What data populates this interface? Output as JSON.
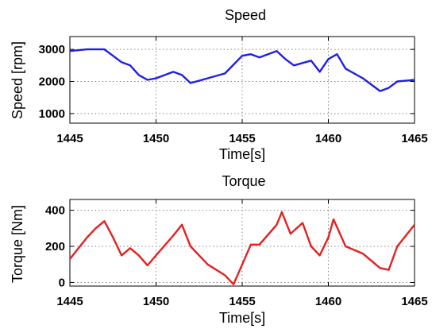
{
  "chart_data": [
    {
      "type": "line",
      "title": "Speed",
      "xlabel": "Time[s]",
      "ylabel": "Speed [rpm]",
      "xlim": [
        1445,
        1465
      ],
      "ylim": [
        700,
        3400
      ],
      "xticks": [
        1445,
        1450,
        1455,
        1460,
        1465
      ],
      "yticks": [
        1000,
        2000,
        3000
      ],
      "grid": true,
      "series": [
        {
          "color": "#1f1fe6",
          "x": [
            1445,
            1446,
            1447,
            1447.5,
            1448,
            1448.5,
            1449,
            1449.5,
            1450,
            1451,
            1451.5,
            1452,
            1453,
            1454,
            1455,
            1455.5,
            1456,
            1457,
            1457.5,
            1458,
            1459,
            1459.5,
            1460,
            1460.5,
            1461,
            1462,
            1463,
            1463.5,
            1464,
            1465
          ],
          "y": [
            2950,
            3000,
            3000,
            2800,
            2600,
            2500,
            2200,
            2050,
            2100,
            2300,
            2200,
            1950,
            2100,
            2250,
            2800,
            2850,
            2750,
            2950,
            2700,
            2500,
            2650,
            2300,
            2700,
            2850,
            2400,
            2100,
            1700,
            1800,
            2000,
            2050
          ]
        }
      ]
    },
    {
      "type": "line",
      "title": "Torque",
      "xlabel": "Time[s]",
      "ylabel": "Torque [Nm]",
      "xlim": [
        1445,
        1465
      ],
      "ylim": [
        -20,
        460
      ],
      "xticks": [
        1445,
        1450,
        1455,
        1460,
        1465
      ],
      "yticks": [
        0,
        200,
        400
      ],
      "grid": true,
      "series": [
        {
          "color": "#e61f1f",
          "x": [
            1445,
            1446,
            1446.5,
            1447,
            1447.5,
            1448,
            1448.5,
            1449,
            1449.5,
            1450,
            1451,
            1451.5,
            1452,
            1453,
            1454,
            1454.5,
            1455,
            1455.5,
            1456,
            1457,
            1457.3,
            1457.8,
            1458.5,
            1459,
            1459.5,
            1460,
            1460.3,
            1461,
            1462,
            1463,
            1463.5,
            1464,
            1465
          ],
          "y": [
            130,
            250,
            300,
            340,
            250,
            150,
            190,
            150,
            95,
            150,
            260,
            320,
            200,
            100,
            40,
            -10,
            100,
            210,
            210,
            320,
            390,
            270,
            330,
            200,
            150,
            250,
            350,
            200,
            160,
            80,
            70,
            200,
            320
          ]
        }
      ]
    }
  ]
}
